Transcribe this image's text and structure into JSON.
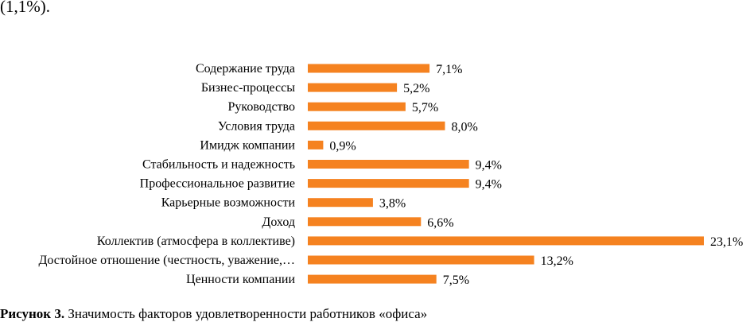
{
  "header": {
    "fragment": "(1,1%)."
  },
  "caption": {
    "lead": "Рисунок 3.",
    "text": " Значимость факторов удовлетворенности работников «офиса»"
  },
  "chart_data": {
    "type": "bar",
    "orientation": "horizontal",
    "title": "",
    "xlabel": "",
    "ylabel": "",
    "bar_color": "#F58220",
    "xlim": [
      0,
      23.1
    ],
    "grid": false,
    "legend": "none",
    "value_suffix": "%",
    "decimal_separator": ",",
    "categories": [
      "Содержание труда",
      "Бизнес-процессы",
      "Руководство",
      "Условия труда",
      "Имидж компании",
      "Стабильность и надежность",
      "Профессиональное развитие",
      "Карьерные возможности",
      "Доход",
      "Коллектив (атмосфера в коллективе)",
      "Достойное отношение (честность, уважение,…",
      "Ценности компании"
    ],
    "values": [
      7.1,
      5.2,
      5.7,
      8.0,
      0.9,
      9.4,
      9.4,
      3.8,
      6.6,
      23.1,
      13.2,
      7.5
    ],
    "labels": [
      "7,1%",
      "5,2%",
      "5,7%",
      "8,0%",
      "0,9%",
      "9,4%",
      "9,4%",
      "3,8%",
      "6,6%",
      "23,1%",
      "13,2%",
      "7,5%"
    ]
  }
}
